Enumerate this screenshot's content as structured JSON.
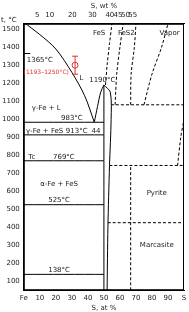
{
  "chart_data": {
    "type": "line",
    "x_label": "S, at %",
    "x2_label": "S, wt %",
    "y_label": "t, °C",
    "xlim": [
      0,
      100
    ],
    "xticks": [
      {
        "value": 0,
        "label": "Fe"
      },
      10,
      20,
      30,
      40,
      50,
      60,
      70,
      80,
      90,
      {
        "value": 100,
        "label": "S"
      }
    ],
    "x2lim": [
      0,
      100
    ],
    "x2ticks": [
      {
        "value": 8.4,
        "label": "5"
      },
      {
        "value": 16.2,
        "label": "10"
      },
      {
        "value": 30.3,
        "label": "20"
      },
      {
        "value": 42.8,
        "label": "30"
      },
      {
        "value": 53.7,
        "label": "40"
      },
      {
        "value": 58.8,
        "label": "45"
      },
      {
        "value": 63.5,
        "label": "50"
      },
      {
        "value": 68.0,
        "label": "55"
      }
    ],
    "ylim": [
      50,
      1530
    ],
    "yticks": [
      100,
      200,
      300,
      400,
      500,
      600,
      700,
      800,
      900,
      1000,
      1100,
      1200,
      1300,
      1400,
      1500
    ],
    "grid": false,
    "series": [
      {
        "color": "#000000",
        "line_style": "solid",
        "points": [
          [
            0,
            1538
          ],
          [
            10,
            1470
          ],
          [
            20,
            1390
          ],
          [
            30,
            1260
          ],
          [
            38,
            1130
          ],
          [
            44,
            983
          ]
        ]
      },
      {
        "color": "#000000",
        "line_style": "solid",
        "points": [
          [
            0,
            1365
          ],
          [
            4,
            1365
          ]
        ]
      },
      {
        "color": "#000000",
        "line_style": "solid",
        "points": [
          [
            44,
            983
          ],
          [
            46,
            1070
          ],
          [
            48,
            1150
          ],
          [
            50,
            1190
          ]
        ]
      },
      {
        "color": "#000000",
        "line_style": "solid",
        "points": [
          [
            0,
            983
          ],
          [
            50,
            983
          ]
        ]
      },
      {
        "color": "#000000",
        "line_style": "solid",
        "points": [
          [
            0,
            913
          ],
          [
            50,
            913
          ]
        ]
      },
      {
        "color": "#000000",
        "line_style": "solid",
        "points": [
          [
            0,
            769
          ],
          [
            50,
            769
          ]
        ]
      },
      {
        "color": "#000000",
        "line_style": "solid",
        "points": [
          [
            0,
            525
          ],
          [
            50,
            525
          ]
        ]
      },
      {
        "color": "#000000",
        "line_style": "solid",
        "points": [
          [
            0,
            138
          ],
          [
            50,
            138
          ]
        ]
      },
      {
        "color": "#000000",
        "line_style": "solid",
        "points": [
          [
            50,
            50
          ],
          [
            50,
            1190
          ]
        ]
      },
      {
        "color": "#000000",
        "line_style": "solid",
        "points": [
          [
            52,
            50
          ],
          [
            52.5,
            400
          ],
          [
            53.5,
            743
          ],
          [
            54.5,
            1000
          ],
          [
            54,
            1150
          ],
          [
            50,
            1190
          ]
        ]
      },
      {
        "color": "#000000",
        "line_style": "dashed",
        "points": [
          [
            51,
            1190
          ],
          [
            52,
            1300
          ],
          [
            53.5,
            1420
          ],
          [
            55,
            1530
          ]
        ]
      },
      {
        "color": "#000000",
        "line_style": "dashed",
        "points": [
          [
            57,
            1080
          ],
          [
            58,
            1250
          ],
          [
            60,
            1400
          ],
          [
            62,
            1530
          ]
        ]
      },
      {
        "color": "#000000",
        "line_style": "dashed",
        "points": [
          [
            54.5,
            1080
          ],
          [
            100,
            1080
          ]
        ]
      },
      {
        "color": "#000000",
        "line_style": "dashed",
        "points": [
          [
            66.7,
            50
          ],
          [
            66.7,
            743
          ]
        ]
      },
      {
        "color": "#000000",
        "line_style": "dashed",
        "points": [
          [
            53.5,
            743
          ],
          [
            100,
            743
          ]
        ]
      },
      {
        "color": "#000000",
        "line_style": "dashed",
        "points": [
          [
            52.5,
            425
          ],
          [
            100,
            425
          ]
        ]
      },
      {
        "color": "#000000",
        "line_style": "dashed",
        "points": [
          [
            75,
            1080
          ],
          [
            80,
            1250
          ],
          [
            86,
            1400
          ],
          [
            90,
            1530
          ]
        ]
      },
      {
        "color": "#000000",
        "line_style": "dashed",
        "points": [
          [
            66.7,
            1080
          ],
          [
            67,
            1250
          ],
          [
            69,
            1400
          ],
          [
            70,
            1530
          ]
        ]
      },
      {
        "color": "#000000",
        "line_style": "dashed",
        "points": [
          [
            96,
            743
          ],
          [
            98,
            900
          ],
          [
            100,
            1000
          ]
        ]
      },
      {
        "type": "scatter",
        "color": "#e03030",
        "marker": "circle",
        "points": [
          [
            32,
            1300
          ]
        ],
        "errors": [
          [
            1250,
            1350
          ]
        ]
      }
    ],
    "annotations": [
      {
        "text": "1365°C",
        "x": 10,
        "y": 1330
      },
      {
        "text": "(1193–1250°C)",
        "x": 14,
        "y": 1260,
        "color": "#e03030"
      },
      {
        "text": "L",
        "x": 36,
        "y": 1230
      },
      {
        "text": "1190°C",
        "x": 49,
        "y": 1215
      },
      {
        "text": "γ-Fe + L",
        "x": 14,
        "y": 1060
      },
      {
        "text": "983°C",
        "x": 30,
        "y": 1003
      },
      {
        "text": "γ-Fe + FeS",
        "x": 13,
        "y": 935
      },
      {
        "text": "913°C",
        "x": 33,
        "y": 935
      },
      {
        "text": "44",
        "x": 45,
        "y": 935
      },
      {
        "text": "Tc",
        "x": 5,
        "y": 790
      },
      {
        "text": "769°C",
        "x": 25,
        "y": 790
      },
      {
        "text": "α-Fe + FeS",
        "x": 22,
        "y": 640
      },
      {
        "text": "525°C",
        "x": 22,
        "y": 548
      },
      {
        "text": "138°C",
        "x": 22,
        "y": 160
      },
      {
        "text": "FeS",
        "x": 47,
        "y": 1480
      },
      {
        "text": "FeS2",
        "x": 64,
        "y": 1480
      },
      {
        "text": "Vapor",
        "x": 91,
        "y": 1480
      },
      {
        "text": "Pyrite",
        "x": 83,
        "y": 590
      },
      {
        "text": "Marcasite",
        "x": 83,
        "y": 300
      }
    ]
  }
}
